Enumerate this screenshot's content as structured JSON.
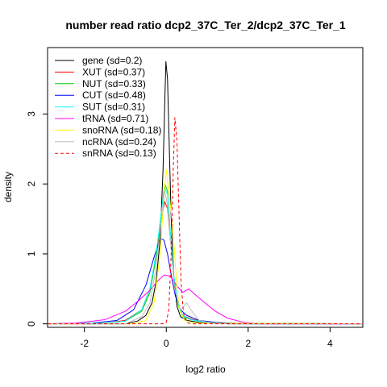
{
  "chart_data": {
    "type": "line",
    "title": "number read ratio dcp2_37C_Ter_2/dcp2_37C_Ter_1",
    "xlabel": "log2 ratio",
    "ylabel": "density",
    "xlim": [
      -2.9,
      4.8
    ],
    "ylim": [
      -0.05,
      3.95
    ],
    "x_ticks": [
      {
        "value": -2,
        "label": "-2"
      },
      {
        "value": 0,
        "label": "0"
      },
      {
        "value": 2,
        "label": "2"
      },
      {
        "value": 4,
        "label": "4"
      }
    ],
    "y_ticks": [
      {
        "value": 0,
        "label": "0"
      },
      {
        "value": 1,
        "label": "1"
      },
      {
        "value": 2,
        "label": "2"
      },
      {
        "value": 3,
        "label": "3"
      }
    ],
    "grid": false,
    "legend_position": "top-left",
    "series": [
      {
        "name": "gene (sd=0.2)",
        "color": "#000000",
        "dash": false,
        "points": [
          [
            -2.9,
            0
          ],
          [
            -1.0,
            0
          ],
          [
            -0.7,
            0.04
          ],
          [
            -0.5,
            0.12
          ],
          [
            -0.35,
            0.3
          ],
          [
            -0.25,
            0.6
          ],
          [
            -0.15,
            1.2
          ],
          [
            -0.08,
            2.2
          ],
          [
            -0.04,
            3.1
          ],
          [
            -0.01,
            3.75
          ],
          [
            0.03,
            3.5
          ],
          [
            0.07,
            2.6
          ],
          [
            0.12,
            1.5
          ],
          [
            0.18,
            0.7
          ],
          [
            0.26,
            0.25
          ],
          [
            0.35,
            0.1
          ],
          [
            0.5,
            0.05
          ],
          [
            0.8,
            0.02
          ],
          [
            1.5,
            0
          ],
          [
            4.8,
            0
          ]
        ]
      },
      {
        "name": "XUT (sd=0.37)",
        "color": "#ff0000",
        "dash": false,
        "points": [
          [
            -2.9,
            0
          ],
          [
            -1.5,
            0.01
          ],
          [
            -1.0,
            0.05
          ],
          [
            -0.6,
            0.2
          ],
          [
            -0.4,
            0.5
          ],
          [
            -0.25,
            0.95
          ],
          [
            -0.12,
            1.5
          ],
          [
            -0.04,
            1.75
          ],
          [
            0.03,
            1.65
          ],
          [
            0.1,
            1.2
          ],
          [
            0.18,
            0.7
          ],
          [
            0.28,
            0.3
          ],
          [
            0.4,
            0.12
          ],
          [
            0.6,
            0.07
          ],
          [
            0.9,
            0.03
          ],
          [
            1.5,
            0.01
          ],
          [
            4.8,
            0
          ]
        ]
      },
      {
        "name": "NUT (sd=0.33)",
        "color": "#00cd00",
        "dash": false,
        "points": [
          [
            -2.9,
            0
          ],
          [
            -1.5,
            0.01
          ],
          [
            -1.0,
            0.04
          ],
          [
            -0.6,
            0.18
          ],
          [
            -0.4,
            0.45
          ],
          [
            -0.25,
            0.95
          ],
          [
            -0.12,
            1.6
          ],
          [
            -0.04,
            2.0
          ],
          [
            0.03,
            1.9
          ],
          [
            0.1,
            1.3
          ],
          [
            0.18,
            0.7
          ],
          [
            0.28,
            0.28
          ],
          [
            0.4,
            0.1
          ],
          [
            0.6,
            0.06
          ],
          [
            0.9,
            0.03
          ],
          [
            1.5,
            0.01
          ],
          [
            4.8,
            0
          ]
        ]
      },
      {
        "name": "CUT (sd=0.48)",
        "color": "#0000ff",
        "dash": false,
        "points": [
          [
            -2.9,
            0
          ],
          [
            -1.8,
            0.01
          ],
          [
            -1.2,
            0.05
          ],
          [
            -0.8,
            0.2
          ],
          [
            -0.5,
            0.55
          ],
          [
            -0.3,
            0.95
          ],
          [
            -0.15,
            1.22
          ],
          [
            -0.06,
            1.2
          ],
          [
            0.03,
            1.0
          ],
          [
            0.12,
            0.7
          ],
          [
            0.22,
            0.4
          ],
          [
            0.35,
            0.2
          ],
          [
            0.5,
            0.12
          ],
          [
            0.8,
            0.05
          ],
          [
            1.2,
            0.02
          ],
          [
            2.0,
            0
          ],
          [
            4.8,
            0
          ]
        ]
      },
      {
        "name": "SUT (sd=0.31)",
        "color": "#00ffff",
        "dash": false,
        "points": [
          [
            -2.9,
            0
          ],
          [
            -1.5,
            0.01
          ],
          [
            -1.0,
            0.04
          ],
          [
            -0.6,
            0.2
          ],
          [
            -0.4,
            0.5
          ],
          [
            -0.25,
            1.0
          ],
          [
            -0.12,
            1.6
          ],
          [
            -0.04,
            1.95
          ],
          [
            0.03,
            1.85
          ],
          [
            0.1,
            1.3
          ],
          [
            0.18,
            0.7
          ],
          [
            0.28,
            0.3
          ],
          [
            0.4,
            0.12
          ],
          [
            0.6,
            0.06
          ],
          [
            1.0,
            0.02
          ],
          [
            1.5,
            0
          ],
          [
            4.8,
            0
          ]
        ]
      },
      {
        "name": "tRNA (sd=0.71)",
        "color": "#ff00ff",
        "dash": false,
        "points": [
          [
            -2.9,
            0
          ],
          [
            -2.2,
            0.01
          ],
          [
            -1.5,
            0.06
          ],
          [
            -1.0,
            0.18
          ],
          [
            -0.7,
            0.32
          ],
          [
            -0.4,
            0.48
          ],
          [
            -0.2,
            0.62
          ],
          [
            -0.05,
            0.7
          ],
          [
            0.1,
            0.68
          ],
          [
            0.25,
            0.55
          ],
          [
            0.4,
            0.45
          ],
          [
            0.55,
            0.5
          ],
          [
            0.7,
            0.42
          ],
          [
            0.9,
            0.32
          ],
          [
            1.2,
            0.18
          ],
          [
            1.5,
            0.08
          ],
          [
            1.9,
            0.02
          ],
          [
            2.3,
            0
          ],
          [
            4.8,
            0
          ]
        ]
      },
      {
        "name": "snoRNA (sd=0.18)",
        "color": "#ffff00",
        "dash": false,
        "points": [
          [
            -2.9,
            0
          ],
          [
            -0.8,
            0
          ],
          [
            -0.5,
            0.05
          ],
          [
            -0.3,
            0.3
          ],
          [
            -0.15,
            1.0
          ],
          [
            -0.05,
            1.9
          ],
          [
            0.0,
            2.2
          ],
          [
            0.06,
            1.9
          ],
          [
            0.12,
            1.6
          ],
          [
            0.18,
            1.2
          ],
          [
            0.25,
            0.6
          ],
          [
            0.32,
            0.2
          ],
          [
            0.45,
            0.05
          ],
          [
            0.7,
            0.01
          ],
          [
            4.8,
            0
          ]
        ]
      },
      {
        "name": "ncRNA (sd=0.24)",
        "color": "#bebebe",
        "dash": false,
        "points": [
          [
            -2.9,
            0
          ],
          [
            -1.0,
            0
          ],
          [
            -0.6,
            0.1
          ],
          [
            -0.4,
            0.3
          ],
          [
            -0.25,
            0.8
          ],
          [
            -0.12,
            1.5
          ],
          [
            -0.04,
            1.9
          ],
          [
            0.03,
            1.7
          ],
          [
            0.1,
            1.2
          ],
          [
            0.2,
            0.5
          ],
          [
            0.35,
            0.2
          ],
          [
            0.5,
            0.3
          ],
          [
            0.6,
            0.2
          ],
          [
            0.8,
            0.05
          ],
          [
            1.2,
            0
          ],
          [
            4.8,
            0
          ]
        ]
      },
      {
        "name": "snRNA (sd=0.13)",
        "color": "#ff0000",
        "dash": true,
        "points": [
          [
            -2.9,
            0
          ],
          [
            -0.1,
            0
          ],
          [
            0.0,
            0.02
          ],
          [
            0.06,
            0.2
          ],
          [
            0.12,
            1.0
          ],
          [
            0.17,
            2.2
          ],
          [
            0.21,
            2.95
          ],
          [
            0.26,
            2.6
          ],
          [
            0.31,
            1.6
          ],
          [
            0.36,
            0.6
          ],
          [
            0.42,
            0.15
          ],
          [
            0.5,
            0.02
          ],
          [
            0.6,
            0
          ],
          [
            4.8,
            0
          ]
        ]
      }
    ]
  }
}
